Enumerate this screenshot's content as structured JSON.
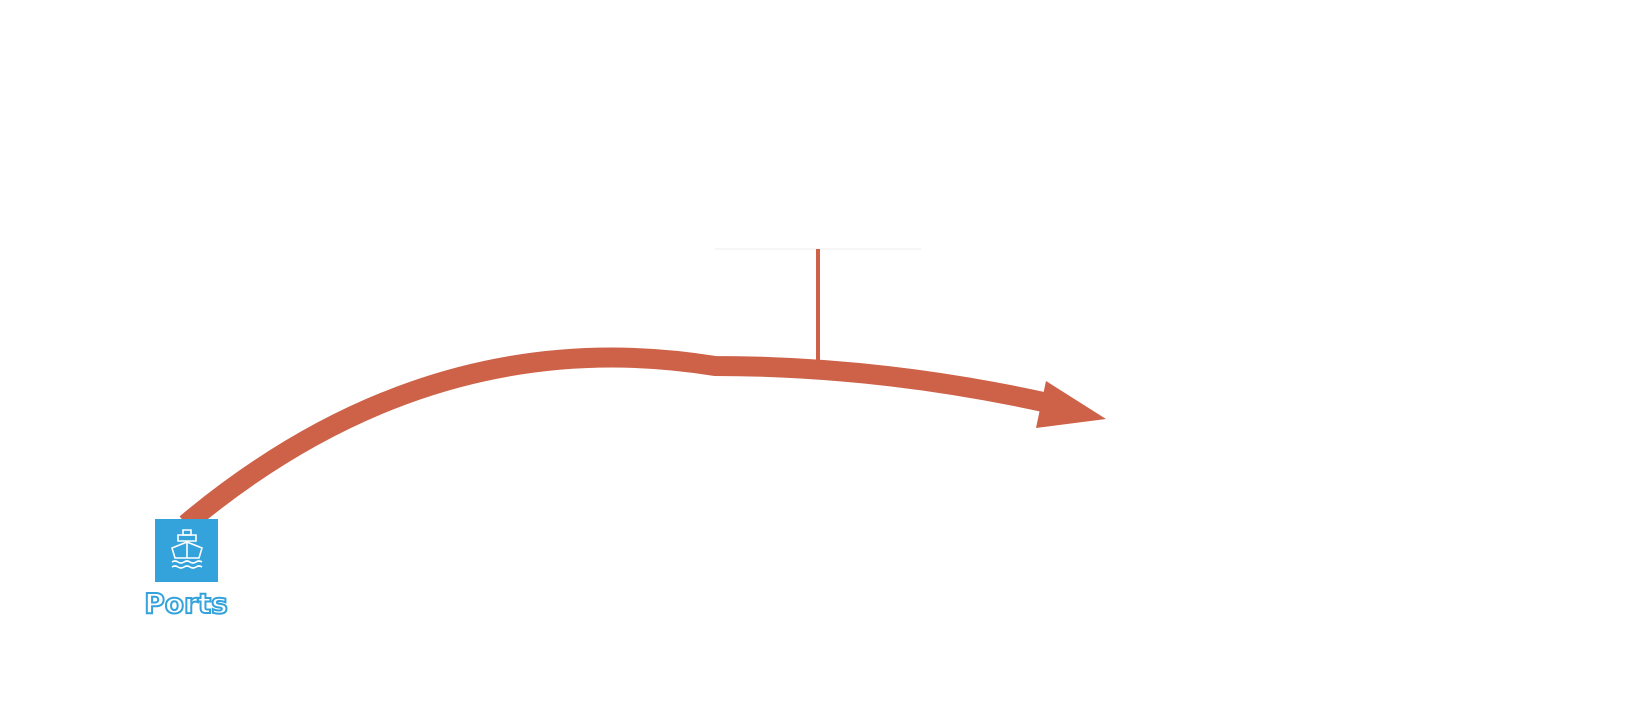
{
  "nodes": [
    {
      "label": "Ports"
    }
  ]
}
